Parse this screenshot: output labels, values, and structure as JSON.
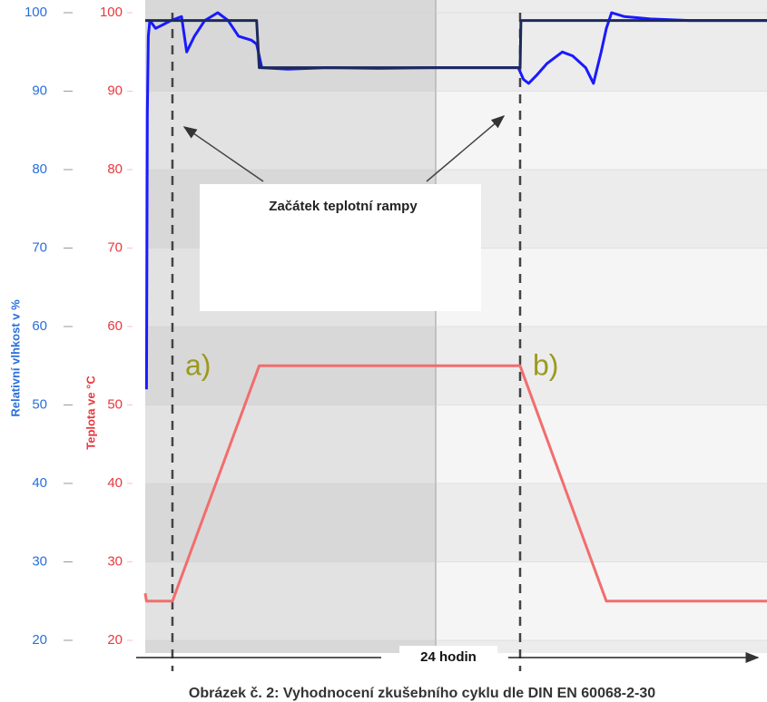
{
  "chart_data": {
    "type": "line",
    "caption": "Obrázek č. 2: Vyhodnocení zkušebního cyklu dle DIN EN 60068-2-30",
    "y_label": "Relativní vlhkost v %",
    "y2_label": "Teplota ve °C",
    "xlim": [
      0,
      24
    ],
    "ylim": [
      20,
      100
    ],
    "yticks": [
      20,
      30,
      40,
      50,
      60,
      70,
      80,
      90,
      100
    ],
    "y_color": "#2a6fdb",
    "y2lim": [
      20,
      100
    ],
    "y2ticks": [
      20,
      30,
      40,
      50,
      60,
      70,
      80,
      90,
      100
    ],
    "y2_color": "#e8383d",
    "grid": true,
    "series": [
      {
        "color": "#1a1aff",
        "axis": "y",
        "x": [
          0.05,
          0.08,
          0.12,
          0.18,
          0.4,
          0.7,
          1.0,
          1.4,
          1.6,
          1.9,
          2.3,
          2.8,
          3.2,
          3.6,
          4.1,
          4.3,
          4.5,
          5.5,
          7.0,
          9.0,
          11.0,
          12.5,
          14.4,
          14.6,
          14.8,
          15.1,
          15.5,
          16.1,
          16.5,
          17.0,
          17.3,
          17.6,
          17.8,
          18.0,
          18.5,
          19.5,
          21.0,
          24.0
        ],
        "values": [
          52,
          87,
          97,
          99,
          98,
          98.5,
          99,
          99.5,
          95,
          97,
          99,
          100,
          99,
          97,
          96.5,
          96,
          93,
          92.8,
          93,
          92.9,
          93,
          93,
          93,
          91.5,
          91,
          92,
          93.5,
          95,
          94.5,
          93,
          91,
          95,
          98,
          100,
          99.5,
          99.2,
          99,
          99
        ]
      },
      {
        "color": "#1c2a5a",
        "axis": "y",
        "x": [
          0.0,
          4.3,
          4.4,
          14.47,
          14.5,
          24.0
        ],
        "values": [
          99,
          99,
          93,
          93,
          99,
          99
        ]
      },
      {
        "color": "#f26d6d",
        "axis": "y2",
        "x": [
          0.0,
          0.05,
          0.1,
          1.05,
          4.4,
          14.47,
          17.8,
          24.0
        ],
        "values": [
          26,
          25,
          25,
          25,
          55,
          55,
          25,
          25
        ]
      }
    ],
    "markers": [
      {
        "x": 1.05,
        "label": "a)"
      },
      {
        "x": 14.47,
        "label": "b)"
      }
    ],
    "marker_color": "#9a9a1e",
    "annotation": "Začátek teplotní rampy",
    "span_label": "24 hodin"
  }
}
